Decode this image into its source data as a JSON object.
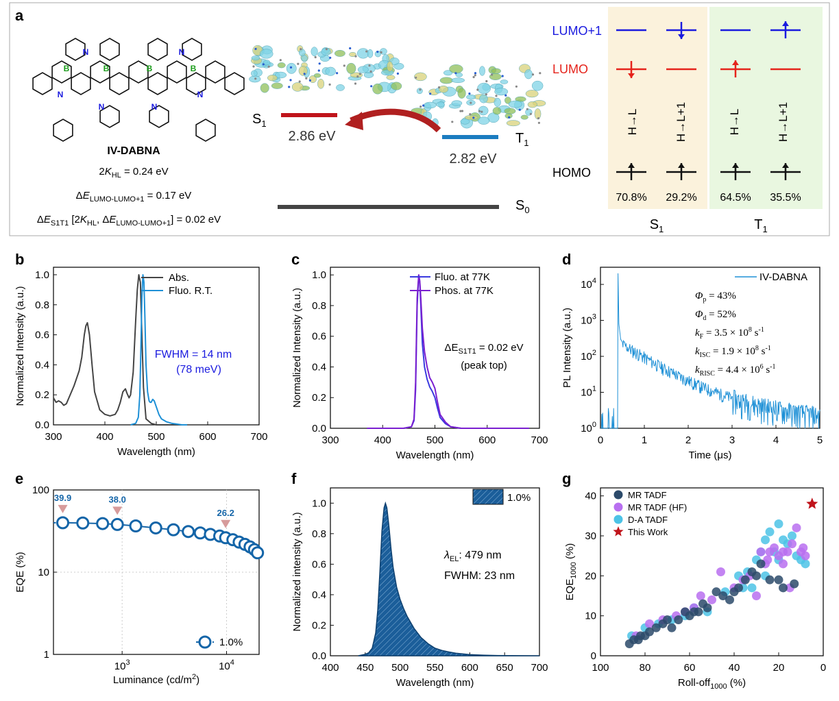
{
  "panel_letters": {
    "a": "a",
    "b": "b",
    "c": "c",
    "d": "d",
    "e": "e",
    "f": "f",
    "g": "g"
  },
  "colors": {
    "blue_line": "#1e90d6",
    "dark": "#444444",
    "fluo77": "#3a3adf",
    "phos77": "#7a1fd0",
    "eqe": "#1465a8",
    "mr": "#2c4a6a",
    "mrhf": "#b86ff0",
    "da": "#4cc3e6",
    "star": "#c0141b",
    "s1_bar": "#c0141b",
    "t1_bar": "#1b7cc0",
    "s1_bg": "#fbf2dc",
    "t1_bg": "#e9f7e0"
  },
  "panel_a": {
    "molecule_name": "IV-DABNA",
    "kHL": {
      "prefix": "2",
      "K": "K",
      "sub": "HL",
      "suffix": " = 0.24 eV"
    },
    "dE_lumo": {
      "prefix": "Δ",
      "E": "E",
      "sub": "LUMO-LUMO+1",
      "suffix": " = 0.17 eV"
    },
    "dE_s1t1": {
      "prefix": "Δ",
      "E": "E",
      "sub": "S1T1",
      "mid": " [2",
      "K": "K",
      "sub2": "HL",
      "mid2": ", Δ",
      "E2": "E",
      "sub3": "LUMO-LUMO+1",
      "suffix": "] = 0.02 eV"
    },
    "s1_label": {
      "main": "S",
      "sub": "1"
    },
    "t1_label": {
      "main": "T",
      "sub": "1"
    },
    "s0_label": {
      "main": "S",
      "sub": "0"
    },
    "s1_energy": "2.86 eV",
    "t1_energy": "2.82 eV",
    "orbitals": [
      "LUMO+1",
      "LUMO",
      "HOMO"
    ],
    "transitions": [
      "H→L",
      "H→L+1",
      "H→L",
      "H→L+1"
    ],
    "percentages": [
      "70.8%",
      "29.2%",
      "64.5%",
      "35.5%"
    ],
    "state_labels": [
      {
        "main": "S",
        "sub": "1"
      },
      {
        "main": "T",
        "sub": "1"
      }
    ]
  },
  "chart_data": [
    {
      "panel": "b",
      "type": "line",
      "xlabel": "Wavelength (nm)",
      "ylabel": "Normalized Intensity (a.u.)",
      "xlim": [
        300,
        700
      ],
      "ylim": [
        0,
        1.05
      ],
      "xticks": [
        "300",
        "400",
        "500",
        "600",
        "700"
      ],
      "yticks": [
        "0.0",
        "0.2",
        "0.4",
        "0.6",
        "0.8",
        "1.0"
      ],
      "series": [
        {
          "name": "Abs.",
          "x": [
            300,
            305,
            310,
            315,
            320,
            325,
            330,
            340,
            350,
            355,
            360,
            363,
            366,
            370,
            375,
            380,
            390,
            400,
            410,
            420,
            425,
            430,
            435,
            440,
            443,
            447,
            450,
            455,
            460,
            463,
            466,
            469,
            472,
            475,
            480,
            490,
            500,
            520,
            550
          ],
          "y": [
            0.18,
            0.15,
            0.16,
            0.15,
            0.13,
            0.14,
            0.18,
            0.26,
            0.36,
            0.45,
            0.6,
            0.66,
            0.68,
            0.6,
            0.4,
            0.22,
            0.1,
            0.07,
            0.06,
            0.07,
            0.1,
            0.15,
            0.22,
            0.24,
            0.21,
            0.18,
            0.2,
            0.35,
            0.7,
            0.9,
            1.0,
            0.95,
            0.6,
            0.25,
            0.04,
            0.01,
            0.0,
            0.0,
            0.0
          ]
        },
        {
          "name": "Fluo. R.T.",
          "x": [
            450,
            460,
            465,
            468,
            470,
            472,
            474,
            476,
            478,
            480,
            483,
            486,
            488,
            490,
            493,
            496,
            500,
            505,
            510,
            520,
            530,
            540,
            550,
            560
          ],
          "y": [
            0.0,
            0.01,
            0.05,
            0.2,
            0.5,
            0.85,
            1.0,
            0.95,
            0.7,
            0.4,
            0.22,
            0.16,
            0.15,
            0.15,
            0.17,
            0.16,
            0.12,
            0.07,
            0.04,
            0.02,
            0.01,
            0.005,
            0.0,
            0.0
          ]
        }
      ],
      "annotation": [
        "FWHM = 14 nm",
        "(78 meV)"
      ]
    },
    {
      "panel": "c",
      "type": "line",
      "xlabel": "Wavelength (nm)",
      "ylabel": "Normalized Intensity (a.u.)",
      "xlim": [
        300,
        700
      ],
      "ylim": [
        0,
        1.05
      ],
      "xticks": [
        "300",
        "400",
        "500",
        "600",
        "700"
      ],
      "yticks": [
        "0.0",
        "0.2",
        "0.4",
        "0.6",
        "0.8",
        "1.0"
      ],
      "series": [
        {
          "name": "Fluo. at 77K",
          "x": [
            370,
            400,
            440,
            455,
            460,
            463,
            466,
            469,
            471,
            473,
            476,
            480,
            485,
            490,
            495,
            500,
            505,
            510,
            520,
            530,
            550,
            600,
            680
          ],
          "y": [
            0,
            0,
            0,
            0.01,
            0.05,
            0.25,
            0.8,
            1.0,
            0.95,
            0.8,
            0.55,
            0.4,
            0.32,
            0.27,
            0.24,
            0.2,
            0.13,
            0.07,
            0.03,
            0.01,
            0,
            0,
            0
          ]
        },
        {
          "name": "Phos. at 77K",
          "x": [
            370,
            400,
            440,
            455,
            460,
            463,
            466,
            469,
            471,
            473,
            476,
            480,
            485,
            490,
            495,
            500,
            505,
            510,
            520,
            530,
            550,
            600,
            680
          ],
          "y": [
            0,
            0,
            0,
            0.01,
            0.06,
            0.3,
            0.85,
            1.0,
            0.96,
            0.85,
            0.65,
            0.5,
            0.4,
            0.33,
            0.3,
            0.26,
            0.17,
            0.09,
            0.04,
            0.01,
            0,
            0,
            0
          ]
        }
      ],
      "annotation": {
        "line1": "ΔE",
        "sub": "S1T1",
        "suffix": " = 0.02 eV",
        "line2": "(peak top)"
      }
    },
    {
      "panel": "d",
      "type": "line",
      "yscale": "log",
      "xlabel": "Time (μs)",
      "ylabel": "PL Intensity (a.u.)",
      "xlim": [
        0,
        5
      ],
      "ylim": [
        1,
        30000
      ],
      "xticks": [
        "0",
        "1",
        "2",
        "3",
        "4",
        "5"
      ],
      "ytick_bases": [
        "10",
        "10",
        "10",
        "10",
        "10"
      ],
      "ytick_exps": [
        "0",
        "1",
        "2",
        "3",
        "4"
      ],
      "series": [
        {
          "name": "IV-DABNA"
        }
      ],
      "params": [
        {
          "sym": "Φ",
          "sub": "p",
          "val": " = 43%"
        },
        {
          "sym": "Φ",
          "sub": "d",
          "val": " = 52%"
        },
        {
          "sym": "k",
          "sub": "F",
          "val": " = 3.5 × 10",
          "exp": "8",
          "unit": " s",
          "uexp": "-1"
        },
        {
          "sym": "k",
          "sub": "ISC",
          "val": " = 1.9 × 10",
          "exp": "8",
          "unit": " s",
          "uexp": "-1"
        },
        {
          "sym": "k",
          "sub": "RISC",
          "val": " = 4.4 × 10",
          "exp": "6",
          "unit": " s",
          "uexp": "-1"
        }
      ]
    },
    {
      "panel": "e",
      "type": "scatter",
      "xscale": "log",
      "yscale": "log",
      "xlabel": "Luminance (cd/m",
      "xlabel_sup": "2",
      "xlabel_end": ")",
      "ylabel": "EQE (%)",
      "ylim": [
        1,
        100
      ],
      "yticks": [
        "1",
        "10",
        "100"
      ],
      "xtick_bases": [
        "10",
        "10"
      ],
      "xtick_exps": [
        "3",
        "4"
      ],
      "x": [
        270,
        420,
        650,
        900,
        1350,
        2100,
        3100,
        4300,
        5600,
        7000,
        8600,
        9800,
        11500,
        13200,
        15000,
        16800,
        18500,
        19800
      ],
      "y": [
        39.9,
        39.6,
        39.0,
        38.0,
        36.5,
        34.5,
        32.8,
        31.2,
        30.0,
        28.8,
        27.5,
        26.2,
        24.8,
        23.2,
        21.8,
        20.3,
        18.8,
        17.2
      ],
      "markers": [
        {
          "x": 270,
          "label": "39.9"
        },
        {
          "x": 1000,
          "label": "38.0"
        },
        {
          "x": 10000,
          "label": "26.2"
        }
      ],
      "series": [
        {
          "name": "1.0%"
        }
      ]
    },
    {
      "panel": "f",
      "type": "area",
      "xlabel": "Wavelength (nm)",
      "ylabel": "Normalized intensity (a.u.)",
      "xlim": [
        400,
        700
      ],
      "ylim": [
        0,
        1.1
      ],
      "xticks": [
        "400",
        "450",
        "500",
        "550",
        "600",
        "650",
        "700"
      ],
      "yticks": [
        "0.0",
        "0.2",
        "0.4",
        "0.6",
        "0.8",
        "1.0"
      ],
      "x": [
        440,
        450,
        455,
        460,
        465,
        468,
        471,
        474,
        477,
        479,
        481,
        484,
        487,
        490,
        495,
        500,
        505,
        510,
        520,
        530,
        540,
        550,
        560,
        570,
        580,
        590,
        600,
        620,
        640,
        660,
        700
      ],
      "y": [
        0,
        0.01,
        0.02,
        0.05,
        0.15,
        0.3,
        0.55,
        0.82,
        0.97,
        1.0,
        0.97,
        0.85,
        0.7,
        0.58,
        0.45,
        0.37,
        0.31,
        0.26,
        0.18,
        0.12,
        0.08,
        0.05,
        0.035,
        0.025,
        0.017,
        0.012,
        0.008,
        0.004,
        0.002,
        0.001,
        0
      ],
      "series": [
        {
          "name": "1.0%"
        }
      ],
      "annotation": {
        "lambda": "λ",
        "lsub": "EL",
        "lval": ": 479 nm",
        "fwhm": "FWHM: 23 nm"
      }
    },
    {
      "panel": "g",
      "type": "scatter",
      "xlabel": "Roll-off",
      "xlabel_sub": "1000",
      "xlabel_end": " (%)",
      "ylabel": "EQE",
      "ylabel_sub": "1000",
      "ylabel_end": " (%)",
      "xlim": [
        100,
        0
      ],
      "ylim": [
        0,
        42
      ],
      "xticks": [
        "100",
        "80",
        "60",
        "40",
        "20",
        "0"
      ],
      "yticks": [
        "0",
        "10",
        "20",
        "30",
        "40"
      ],
      "series": [
        {
          "name": "MR TADF",
          "points": [
            [
              87,
              3
            ],
            [
              85,
              4
            ],
            [
              83,
              4
            ],
            [
              80,
              5
            ],
            [
              78,
              6
            ],
            [
              75,
              7
            ],
            [
              72,
              8
            ],
            [
              68,
              7
            ],
            [
              65,
              9
            ],
            [
              60,
              10
            ],
            [
              58,
              11
            ],
            [
              56,
              11
            ],
            [
              52,
              12
            ],
            [
              48,
              16
            ],
            [
              45,
              15
            ],
            [
              42,
              14
            ],
            [
              40,
              16
            ],
            [
              38,
              17
            ],
            [
              35,
              19
            ],
            [
              32,
              21
            ],
            [
              30,
              20
            ],
            [
              28,
              23
            ],
            [
              24,
              19
            ],
            [
              20,
              19
            ],
            [
              18,
              17
            ],
            [
              13,
              18
            ],
            [
              82,
              5
            ],
            [
              70,
              9
            ],
            [
              62,
              11
            ],
            [
              54,
              13
            ]
          ]
        },
        {
          "name": "MR TADF (HF)",
          "points": [
            [
              84,
              5
            ],
            [
              78,
              8
            ],
            [
              72,
              9
            ],
            [
              66,
              10
            ],
            [
              62,
              11
            ],
            [
              58,
              12
            ],
            [
              55,
              15
            ],
            [
              50,
              14
            ],
            [
              46,
              21
            ],
            [
              40,
              17
            ],
            [
              36,
              19
            ],
            [
              33,
              20
            ],
            [
              30,
              15
            ],
            [
              28,
              26
            ],
            [
              26,
              23
            ],
            [
              24,
              26
            ],
            [
              22,
              27
            ],
            [
              20,
              25
            ],
            [
              18,
              23
            ],
            [
              16,
              26
            ],
            [
              14,
              28
            ],
            [
              12,
              32
            ],
            [
              10,
              26
            ],
            [
              9,
              27
            ],
            [
              8,
              25
            ],
            [
              15,
              17
            ],
            [
              18,
              26
            ],
            [
              25,
              24
            ]
          ]
        },
        {
          "name": "D-A TADF",
          "points": [
            [
              86,
              5
            ],
            [
              80,
              7
            ],
            [
              74,
              8
            ],
            [
              68,
              9
            ],
            [
              62,
              10
            ],
            [
              58,
              12
            ],
            [
              52,
              11
            ],
            [
              44,
              16
            ],
            [
              38,
              20
            ],
            [
              36,
              17
            ],
            [
              34,
              21
            ],
            [
              30,
              24
            ],
            [
              28,
              26
            ],
            [
              26,
              29
            ],
            [
              24,
              31
            ],
            [
              22,
              26
            ],
            [
              20,
              33
            ],
            [
              18,
              29
            ],
            [
              16,
              28
            ],
            [
              14,
              30
            ],
            [
              10,
              24
            ],
            [
              8,
              23
            ],
            [
              12,
              25
            ],
            [
              20,
              24
            ],
            [
              26,
              20
            ],
            [
              32,
              17
            ]
          ]
        },
        {
          "name": "This Work",
          "points": [
            [
              5,
              38
            ]
          ]
        }
      ]
    }
  ]
}
